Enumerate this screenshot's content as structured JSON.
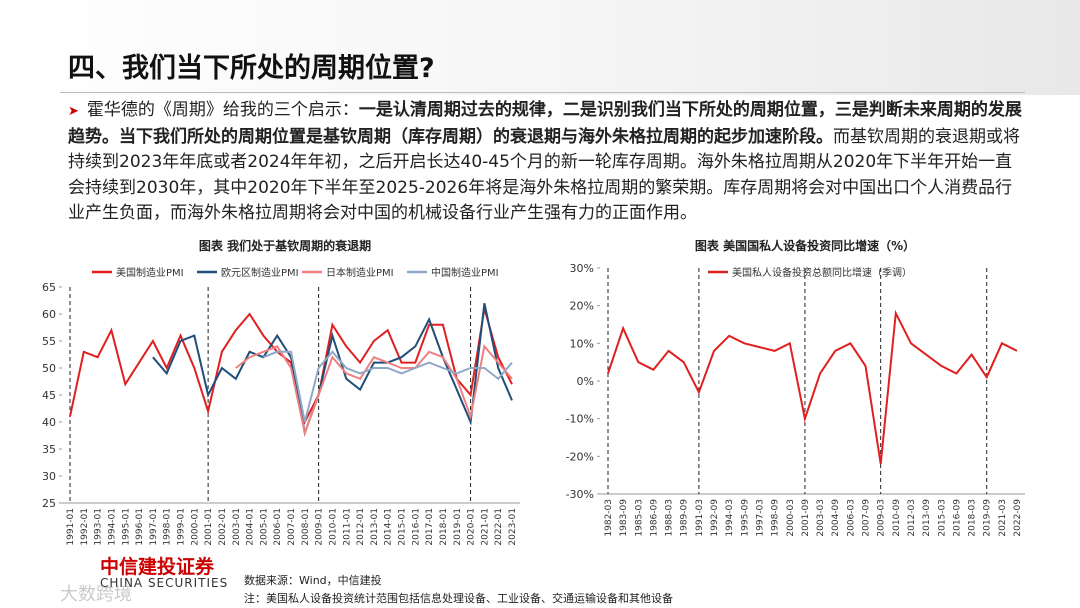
{
  "header": {
    "title": "四、我们当下所处的周期位置?"
  },
  "body": {
    "lead": "霍华德的《周期》给我的三个启示：",
    "bold": "一是认清周期过去的规律，二是识别我们当下所处的周期位置，三是判断未来周期的发展趋势。当下我们所处的周期位置是基钦周期（库存周期）的衰退期与海外朱格拉周期的起步加速阶段。",
    "rest": "而基钦周期的衰退期或将持续到2023年年底或者2024年年初，之后开启长达40-45个月的新一轮库存周期。海外朱格拉周期从2020年下半年开始一直会持续到2030年，其中2020年下半年至2025-2026年将是海外朱格拉周期的繁荣期。库存周期将会对中国出口个人消费品行业产生负面，而海外朱格拉周期将会对中国的机械设备行业产生强有力的正面作用。"
  },
  "chart_data": [
    {
      "type": "line",
      "title": "图表 我们处于基钦周期的衰退期",
      "categories": [
        "1991-01",
        "1992-01",
        "1993-01",
        "1994-01",
        "1995-01",
        "1996-01",
        "1997-01",
        "1998-01",
        "1999-01",
        "2000-01",
        "2001-01",
        "2002-01",
        "2003-01",
        "2004-01",
        "2005-01",
        "2006-01",
        "2007-01",
        "2008-01",
        "2009-01",
        "2010-01",
        "2011-01",
        "2012-01",
        "2013-01",
        "2014-01",
        "2015-01",
        "2016-01",
        "2017-01",
        "2018-01",
        "2019-01",
        "2020-01",
        "2021-01",
        "2022-01",
        "2023-01"
      ],
      "series": [
        {
          "name": "美国制造业PMI",
          "color": "#e02020",
          "values": [
            41,
            53,
            52,
            57,
            47,
            51,
            55,
            50,
            56,
            50,
            42,
            53,
            57,
            60,
            56,
            53,
            51,
            40,
            45,
            58,
            54,
            51,
            55,
            57,
            51,
            51,
            58,
            58,
            48,
            45,
            61,
            52,
            47
          ]
        },
        {
          "name": "欧元区制造业PMI",
          "color": "#1f4e79",
          "values": [
            null,
            null,
            null,
            null,
            null,
            null,
            52,
            49,
            55,
            56,
            45,
            50,
            48,
            53,
            52,
            56,
            52,
            38,
            45,
            56,
            48,
            46,
            51,
            51,
            52,
            54,
            59,
            52,
            46,
            40,
            62,
            50,
            44
          ]
        },
        {
          "name": "日本制造业PMI",
          "color": "#f08080",
          "values": [
            null,
            null,
            null,
            null,
            null,
            null,
            null,
            null,
            null,
            null,
            null,
            null,
            50,
            52,
            53,
            54,
            50,
            38,
            45,
            52,
            49,
            48,
            52,
            51,
            50,
            50,
            53,
            52,
            48,
            41,
            54,
            51,
            48
          ]
        },
        {
          "name": "中国制造业PMI",
          "color": "#8fa8c8",
          "values": [
            null,
            null,
            null,
            null,
            null,
            null,
            null,
            null,
            null,
            null,
            null,
            null,
            null,
            null,
            52,
            53,
            53,
            40,
            50,
            53,
            50,
            49,
            50,
            50,
            49,
            50,
            51,
            50,
            49,
            50,
            50,
            48,
            51
          ]
        }
      ],
      "ylim": [
        25,
        65
      ],
      "yticks": [
        25,
        30,
        35,
        40,
        45,
        50,
        55,
        60,
        65
      ],
      "reference_lines": [
        "1991-01",
        "2001-01",
        "2009-01",
        "2020-01"
      ]
    },
    {
      "type": "line",
      "title": "图表 美国国私人设备投资同比增速（%）",
      "categories": [
        "1982-03",
        "1983-09",
        "1985-03",
        "1986-09",
        "1988-03",
        "1989-09",
        "1991-03",
        "1992-09",
        "1994-03",
        "1995-09",
        "1997-03",
        "1998-09",
        "2000-03",
        "2001-09",
        "2003-03",
        "2004-09",
        "2006-03",
        "2007-09",
        "2009-03",
        "2010-09",
        "2012-03",
        "2013-09",
        "2015-03",
        "2016-09",
        "2018-03",
        "2019-09",
        "2021-03",
        "2022-09"
      ],
      "series": [
        {
          "name": "美国私人设备投资总额同比增速（季调）",
          "color": "#e02020",
          "values": [
            2,
            14,
            5,
            3,
            8,
            5,
            -3,
            8,
            12,
            10,
            9,
            8,
            10,
            -10,
            2,
            8,
            10,
            4,
            -22,
            18,
            10,
            7,
            4,
            2,
            7,
            1,
            10,
            8
          ]
        }
      ],
      "ylim": [
        -30,
        30
      ],
      "yticks": [
        {
          "value": -30,
          "label": "-30%"
        },
        {
          "value": -20,
          "label": "-20%"
        },
        {
          "value": -10,
          "label": "-10%"
        },
        {
          "value": 0,
          "label": "0%"
        },
        {
          "value": 10,
          "label": "10%"
        },
        {
          "value": 20,
          "label": "20%"
        },
        {
          "value": 30,
          "label": "30%"
        }
      ],
      "reference_lines": [
        "1982-03",
        "1991-03",
        "2001-09",
        "2009-03",
        "2019-09"
      ]
    }
  ],
  "footer": {
    "source": "数据来源：Wind，中信建投",
    "note": "注：美国私人设备投资统计范围包括信息处理设备、工业设备、交通运输设备和其他设备",
    "logo_cn": "中信建投证券",
    "logo_en": "CHINA SECURITIES",
    "watermark": "大数跨境"
  }
}
